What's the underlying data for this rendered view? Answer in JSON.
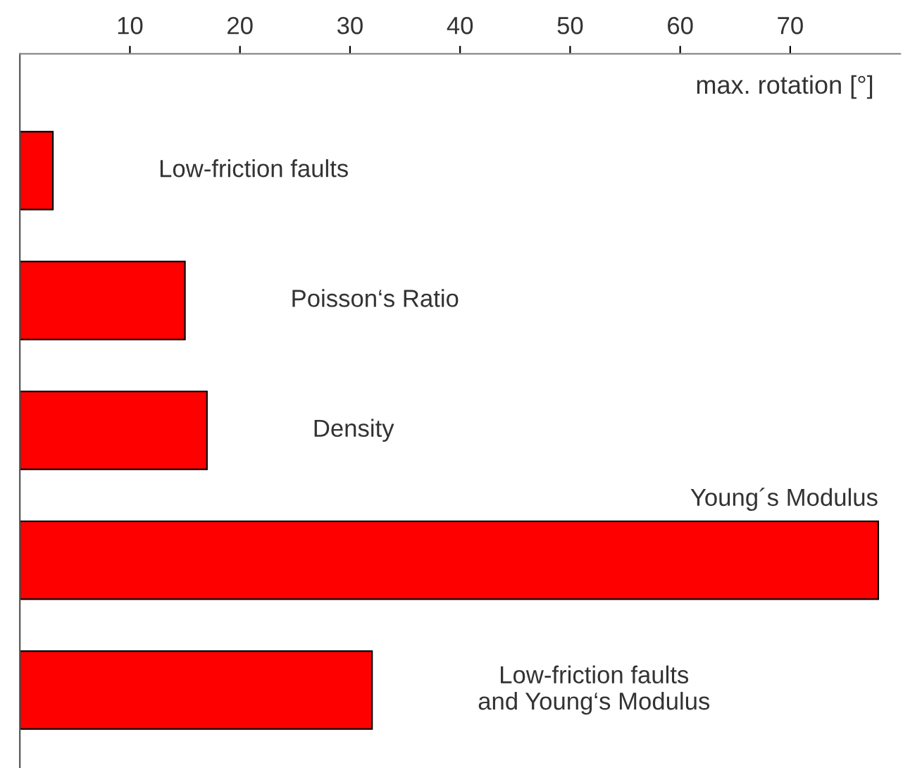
{
  "chart_data": {
    "type": "bar",
    "orientation": "horizontal",
    "xlabel": "max. rotation [°]",
    "categories": [
      "Low-friction faults",
      "Poisson‘s Ratio",
      "Density",
      "Young´s Modulus",
      "Low-friction faults\nand Young‘s Modulus"
    ],
    "values": [
      3,
      15,
      17,
      78,
      32
    ],
    "color": "#ff0000",
    "xlim": [
      0,
      80
    ],
    "xticks": [
      10,
      20,
      30,
      40,
      50,
      60,
      70
    ],
    "grid": false,
    "legend": false
  }
}
